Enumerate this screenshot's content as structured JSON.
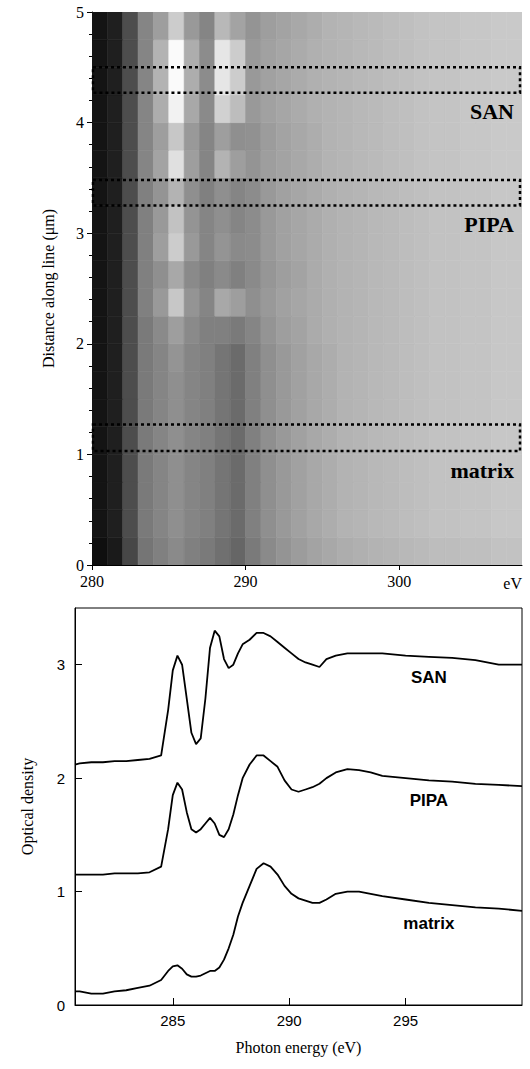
{
  "chart_data": [
    {
      "type": "image",
      "x_bins": [
        280,
        281,
        282,
        283,
        284,
        285,
        286,
        287,
        288,
        289,
        290,
        291,
        292,
        293,
        294,
        295,
        296,
        297,
        298,
        299,
        300,
        301,
        302,
        303,
        304,
        305,
        306,
        307,
        308
      ],
      "y_bins": [
        0,
        0.25,
        0.5,
        0.75,
        1,
        1.25,
        1.5,
        1.75,
        2,
        2.25,
        2.5,
        2.75,
        3,
        3.25,
        3.5,
        3.75,
        4,
        4.25,
        4.5,
        4.75,
        5
      ],
      "values": [
        [
          6,
          10,
          28,
          46,
          50,
          54,
          50,
          48,
          44,
          40,
          48,
          54,
          58,
          61,
          64,
          66,
          68,
          69,
          70,
          71,
          72,
          73,
          74,
          74,
          75,
          75,
          76,
          76
        ],
        [
          8,
          12,
          30,
          48,
          52,
          56,
          52,
          50,
          46,
          42,
          50,
          56,
          60,
          63,
          66,
          68,
          70,
          71,
          72,
          73,
          74,
          75,
          76,
          76,
          77,
          77,
          78,
          78
        ],
        [
          8,
          12,
          30,
          48,
          52,
          56,
          52,
          50,
          46,
          42,
          50,
          56,
          60,
          63,
          66,
          68,
          70,
          71,
          72,
          73,
          74,
          75,
          76,
          76,
          77,
          77,
          78,
          78
        ],
        [
          8,
          12,
          30,
          48,
          52,
          56,
          52,
          50,
          46,
          42,
          50,
          56,
          60,
          63,
          66,
          68,
          70,
          71,
          72,
          73,
          74,
          75,
          76,
          76,
          77,
          77,
          78,
          78
        ],
        [
          8,
          12,
          30,
          48,
          52,
          56,
          52,
          50,
          46,
          42,
          50,
          56,
          60,
          63,
          66,
          68,
          70,
          71,
          72,
          73,
          74,
          75,
          76,
          76,
          77,
          77,
          78,
          78
        ],
        [
          8,
          12,
          30,
          48,
          52,
          56,
          52,
          50,
          46,
          42,
          50,
          56,
          60,
          63,
          66,
          68,
          70,
          71,
          72,
          73,
          74,
          75,
          76,
          76,
          77,
          77,
          78,
          78
        ],
        [
          8,
          12,
          30,
          48,
          52,
          56,
          52,
          50,
          46,
          42,
          50,
          56,
          60,
          63,
          66,
          68,
          70,
          71,
          72,
          73,
          74,
          75,
          76,
          76,
          77,
          77,
          78,
          78
        ],
        [
          8,
          12,
          30,
          48,
          52,
          58,
          52,
          50,
          46,
          42,
          50,
          56,
          60,
          63,
          66,
          68,
          70,
          71,
          72,
          73,
          74,
          75,
          76,
          76,
          77,
          77,
          78,
          78
        ],
        [
          8,
          12,
          30,
          48,
          54,
          62,
          54,
          50,
          50,
          48,
          52,
          58,
          62,
          64,
          67,
          69,
          70,
          71,
          72,
          73,
          74,
          75,
          76,
          76,
          77,
          77,
          78,
          78
        ],
        [
          8,
          12,
          30,
          50,
          60,
          78,
          58,
          52,
          66,
          62,
          56,
          60,
          63,
          65,
          67,
          69,
          70,
          71,
          72,
          73,
          74,
          75,
          76,
          76,
          77,
          77,
          78,
          78
        ],
        [
          8,
          12,
          30,
          50,
          56,
          66,
          54,
          50,
          54,
          50,
          54,
          59,
          62,
          64,
          67,
          69,
          70,
          71,
          72,
          73,
          74,
          75,
          76,
          76,
          77,
          77,
          78,
          78
        ],
        [
          8,
          12,
          30,
          50,
          62,
          80,
          60,
          52,
          58,
          54,
          55,
          60,
          63,
          65,
          67,
          69,
          70,
          71,
          72,
          73,
          74,
          75,
          76,
          76,
          77,
          77,
          78,
          78
        ],
        [
          8,
          12,
          30,
          50,
          60,
          76,
          58,
          52,
          56,
          52,
          55,
          60,
          63,
          65,
          67,
          69,
          70,
          71,
          72,
          73,
          74,
          75,
          76,
          76,
          77,
          77,
          78,
          78
        ],
        [
          8,
          12,
          30,
          50,
          58,
          70,
          56,
          50,
          56,
          52,
          55,
          60,
          63,
          65,
          67,
          69,
          70,
          71,
          72,
          73,
          74,
          75,
          76,
          76,
          77,
          77,
          78,
          78
        ],
        [
          8,
          12,
          30,
          52,
          64,
          88,
          62,
          52,
          70,
          62,
          58,
          62,
          64,
          66,
          68,
          70,
          71,
          72,
          73,
          74,
          75,
          76,
          77,
          77,
          78,
          78,
          79,
          79
        ],
        [
          8,
          12,
          30,
          52,
          62,
          78,
          60,
          52,
          62,
          56,
          57,
          61,
          64,
          66,
          68,
          70,
          71,
          72,
          73,
          74,
          75,
          76,
          77,
          77,
          78,
          78,
          79,
          79
        ],
        [
          8,
          12,
          30,
          52,
          68,
          95,
          66,
          54,
          82,
          74,
          60,
          63,
          65,
          67,
          69,
          70,
          71,
          72,
          73,
          74,
          75,
          76,
          77,
          77,
          78,
          78,
          79,
          79
        ],
        [
          8,
          12,
          30,
          52,
          70,
          98,
          68,
          55,
          90,
          80,
          60,
          63,
          65,
          67,
          69,
          70,
          71,
          72,
          73,
          74,
          75,
          76,
          77,
          77,
          78,
          78,
          79,
          79
        ],
        [
          8,
          12,
          30,
          52,
          70,
          98,
          68,
          55,
          90,
          80,
          60,
          63,
          65,
          67,
          69,
          70,
          71,
          72,
          73,
          74,
          75,
          76,
          77,
          77,
          78,
          78,
          79,
          79
        ],
        [
          8,
          12,
          30,
          52,
          62,
          80,
          60,
          52,
          72,
          64,
          58,
          62,
          64,
          66,
          68,
          70,
          71,
          72,
          73,
          74,
          75,
          76,
          77,
          77,
          78,
          78,
          79,
          79
        ]
      ],
      "color_range": [
        0,
        100
      ],
      "xlim": [
        280,
        308
      ],
      "ylim": [
        0,
        5
      ],
      "xticks": [
        280,
        290,
        300
      ],
      "yticks": [
        0,
        1,
        2,
        3,
        4,
        5
      ],
      "xlabel": "eV",
      "ylabel": "Distance along line (μm)",
      "regions": [
        {
          "label": "SAN",
          "y": [
            4.27,
            4.5
          ]
        },
        {
          "label": "PIPA",
          "y": [
            3.25,
            3.48
          ]
        },
        {
          "label": "matrix",
          "y": [
            1.03,
            1.27
          ]
        }
      ]
    },
    {
      "type": "line",
      "x": [
        280.8,
        281,
        281.5,
        282,
        282.5,
        283,
        283.5,
        284,
        284.5,
        284.8,
        285,
        285.2,
        285.4,
        285.6,
        285.8,
        286,
        286.2,
        286.4,
        286.6,
        286.8,
        287,
        287.2,
        287.4,
        287.6,
        287.8,
        288,
        288.3,
        288.6,
        288.9,
        289.2,
        289.5,
        289.8,
        290.1,
        290.4,
        290.7,
        291,
        291.3,
        291.6,
        292,
        292.5,
        293,
        293.5,
        294,
        295,
        296,
        297,
        298,
        299,
        300
      ],
      "series": [
        {
          "name": "SAN",
          "color": "#000000",
          "values": [
            2.12,
            2.13,
            2.14,
            2.14,
            2.15,
            2.15,
            2.16,
            2.17,
            2.2,
            2.6,
            2.95,
            3.08,
            3.0,
            2.7,
            2.4,
            2.3,
            2.35,
            2.7,
            3.15,
            3.3,
            3.25,
            3.05,
            2.97,
            3.0,
            3.1,
            3.18,
            3.22,
            3.28,
            3.28,
            3.25,
            3.2,
            3.15,
            3.1,
            3.05,
            3.02,
            3.0,
            2.98,
            3.05,
            3.08,
            3.1,
            3.1,
            3.1,
            3.1,
            3.08,
            3.07,
            3.06,
            3.04,
            3.0,
            3.0
          ]
        },
        {
          "name": "PIPA",
          "color": "#000000",
          "values": [
            1.15,
            1.15,
            1.15,
            1.15,
            1.16,
            1.16,
            1.16,
            1.17,
            1.22,
            1.55,
            1.85,
            1.96,
            1.9,
            1.7,
            1.55,
            1.52,
            1.55,
            1.6,
            1.65,
            1.6,
            1.5,
            1.48,
            1.55,
            1.68,
            1.85,
            2.0,
            2.12,
            2.2,
            2.2,
            2.15,
            2.1,
            1.98,
            1.9,
            1.88,
            1.9,
            1.92,
            1.95,
            2.0,
            2.05,
            2.08,
            2.07,
            2.05,
            2.02,
            2.0,
            1.98,
            1.97,
            1.95,
            1.94,
            1.93
          ]
        },
        {
          "name": "matrix",
          "color": "#000000",
          "values": [
            0.12,
            0.12,
            0.1,
            0.1,
            0.12,
            0.13,
            0.15,
            0.17,
            0.22,
            0.3,
            0.34,
            0.35,
            0.32,
            0.27,
            0.25,
            0.25,
            0.26,
            0.28,
            0.3,
            0.3,
            0.33,
            0.4,
            0.5,
            0.62,
            0.78,
            0.9,
            1.05,
            1.2,
            1.25,
            1.22,
            1.15,
            1.05,
            0.98,
            0.94,
            0.92,
            0.9,
            0.9,
            0.93,
            0.98,
            1.0,
            1.0,
            0.98,
            0.96,
            0.93,
            0.9,
            0.88,
            0.86,
            0.85,
            0.83
          ]
        }
      ],
      "xlim": [
        280.8,
        300
      ],
      "ylim": [
        0,
        3.5
      ],
      "xticks": [
        285,
        290,
        295
      ],
      "yticks": [
        0,
        1,
        2,
        3
      ],
      "xlabel": "Photon energy (eV)",
      "ylabel": "Optical density"
    }
  ]
}
